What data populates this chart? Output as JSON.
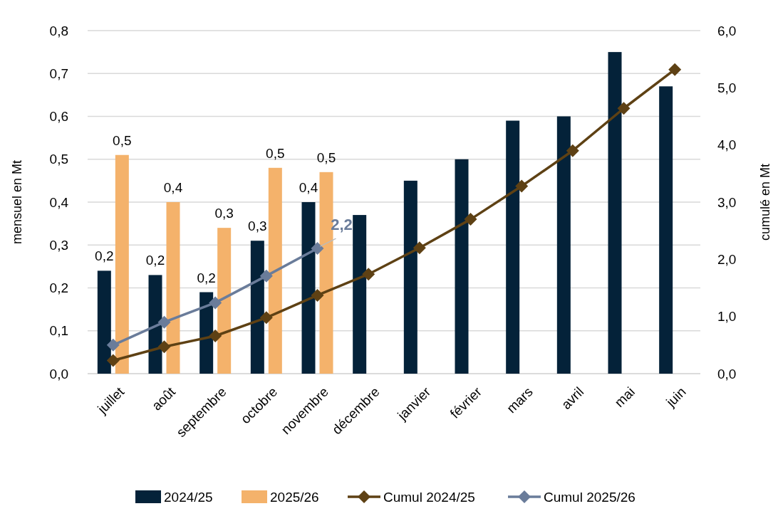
{
  "chart_data": {
    "type": "bar",
    "ylabel": "mensuel en Mt",
    "y2label": "cumulé en Mt",
    "categories": [
      "juillet",
      "août",
      "septembre",
      "octobre",
      "novembre",
      "décembre",
      "janvier",
      "février",
      "mars",
      "avril",
      "mai",
      "juin"
    ],
    "series": [
      {
        "name": "2024/25",
        "color": "#042239",
        "values": [
          0.24,
          0.23,
          0.19,
          0.31,
          0.4,
          0.37,
          0.45,
          0.5,
          0.59,
          0.6,
          0.75,
          0.67
        ],
        "value_labels": [
          "0,2",
          "0,2",
          "0,2",
          "0,3",
          "0,4",
          null,
          null,
          null,
          null,
          null,
          null,
          null
        ]
      },
      {
        "name": "2025/26",
        "color": "#f4b26b",
        "values": [
          0.51,
          0.4,
          0.34,
          0.48,
          0.47,
          null,
          null,
          null,
          null,
          null,
          null,
          null
        ],
        "value_labels": [
          "0,5",
          "0,4",
          "0,3",
          "0,5",
          "0,5",
          null,
          null,
          null,
          null,
          null,
          null,
          null
        ]
      },
      {
        "name": "Cumul 2024/25",
        "type": "line",
        "axis": "y2",
        "color": "#5e4114",
        "values": [
          0.23,
          0.47,
          0.66,
          0.98,
          1.37,
          1.74,
          2.2,
          2.7,
          3.28,
          3.9,
          4.64,
          5.32
        ]
      },
      {
        "name": "Cumul 2025/26",
        "type": "line",
        "axis": "y2",
        "color": "#6a7c9a",
        "values": [
          0.5,
          0.9,
          1.24,
          1.71,
          2.19,
          null,
          null,
          null,
          null,
          null,
          null,
          null
        ],
        "value_labels": [
          null,
          null,
          null,
          null,
          "2,2",
          null,
          null,
          null,
          null,
          null,
          null,
          null
        ]
      }
    ],
    "ylim": [
      0,
      0.8
    ],
    "yticks": [
      {
        "value": 0,
        "label": "0,0"
      },
      {
        "value": 0.1,
        "label": "0,1"
      },
      {
        "value": 0.2,
        "label": "0,2"
      },
      {
        "value": 0.3,
        "label": "0,3"
      },
      {
        "value": 0.4,
        "label": "0,4"
      },
      {
        "value": 0.5,
        "label": "0,5"
      },
      {
        "value": 0.6,
        "label": "0,6"
      },
      {
        "value": 0.7,
        "label": "0,7"
      },
      {
        "value": 0.8,
        "label": "0,8"
      }
    ],
    "y2lim": [
      0,
      6
    ],
    "y2ticks": [
      {
        "value": 0,
        "label": "0,0"
      },
      {
        "value": 1,
        "label": "1,0"
      },
      {
        "value": 2,
        "label": "2,0"
      },
      {
        "value": 3,
        "label": "3,0"
      },
      {
        "value": 4,
        "label": "4,0"
      },
      {
        "value": 5,
        "label": "5,0"
      },
      {
        "value": 6,
        "label": "6,0"
      }
    ],
    "grid": "y",
    "legend": "bottom",
    "marker": "diamond",
    "line_style": "solid"
  }
}
